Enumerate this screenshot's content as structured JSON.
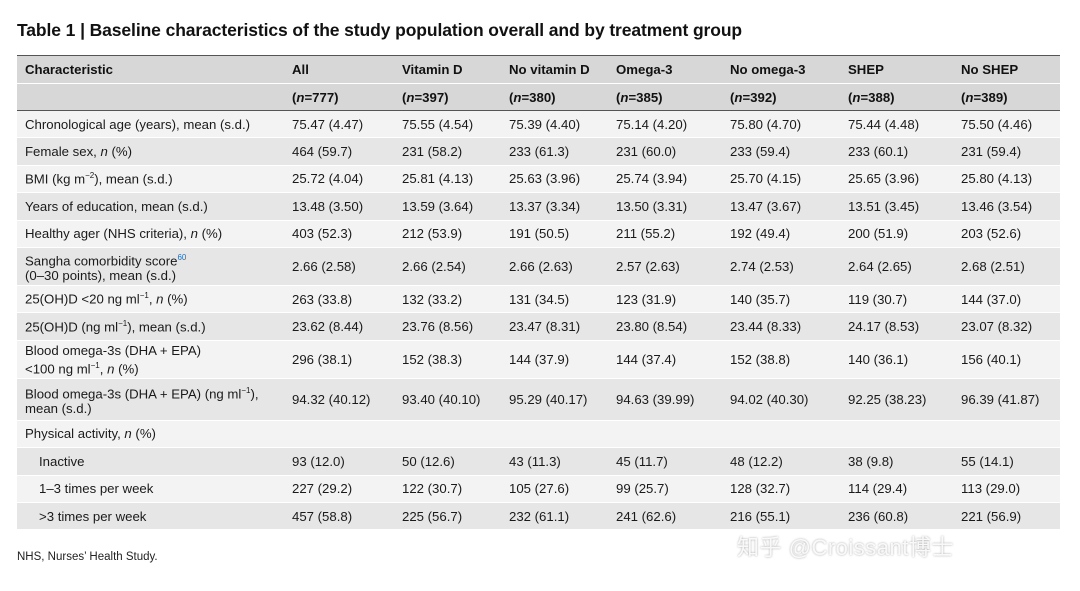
{
  "title": "Table 1 | Baseline characteristics of the study population overall and by treatment group",
  "header": {
    "characteristic": "Characteristic",
    "columns": [
      "All",
      "Vitamin D",
      "No vitamin D",
      "Omega-3",
      "No omega-3",
      "SHEP",
      "No SHEP"
    ],
    "n_label": "n",
    "n_values": [
      "=777)",
      "=397)",
      "=380)",
      "=385)",
      "=392)",
      "=388)",
      "=389)"
    ]
  },
  "rows": [
    {
      "label": "Chronological age (years), mean (s.d.)",
      "values": [
        "75.47 (4.47)",
        "75.55 (4.54)",
        "75.39 (4.40)",
        "75.14 (4.20)",
        "75.80 (4.70)",
        "75.44 (4.48)",
        "75.50 (4.46)"
      ]
    },
    {
      "label_pre": "Female sex, ",
      "label_n": "n",
      "label_post": " (%)",
      "values": [
        "464 (59.7)",
        "231 (58.2)",
        "233 (61.3)",
        "231 (60.0)",
        "233 (59.4)",
        "233 (60.1)",
        "231 (59.4)"
      ]
    },
    {
      "label_pre": "BMI (kg m",
      "label_sup": "−2",
      "label_post": "), mean (s.d.)",
      "values": [
        "25.72 (4.04)",
        "25.81 (4.13)",
        "25.63 (3.96)",
        "25.74 (3.94)",
        "25.70 (4.15)",
        "25.65 (3.96)",
        "25.80 (4.13)"
      ]
    },
    {
      "label": "Years of education, mean (s.d.)",
      "values": [
        "13.48 (3.50)",
        "13.59 (3.64)",
        "13.37 (3.34)",
        "13.50 (3.31)",
        "13.47 (3.67)",
        "13.51 (3.45)",
        "13.46 (3.54)"
      ]
    },
    {
      "label_pre": "Healthy ager (NHS criteria), ",
      "label_n": "n",
      "label_post": " (%)",
      "values": [
        "403 (52.3)",
        "212 (53.9)",
        "191 (50.5)",
        "211 (55.2)",
        "192 (49.4)",
        "200 (51.9)",
        "203 (52.6)"
      ]
    },
    {
      "label_line1": "Sangha comorbidity score",
      "label_ref": "60",
      "label_line2": "(0–30 points), mean (s.d.)",
      "values": [
        "2.66 (2.58)",
        "2.66 (2.54)",
        "2.66 (2.63)",
        "2.57 (2.63)",
        "2.74 (2.53)",
        "2.64 (2.65)",
        "2.68 (2.51)"
      ]
    },
    {
      "label_pre": "25(OH)D <20 ng ml",
      "label_sup": "−1",
      "label_mid": ", ",
      "label_n": "n",
      "label_post": " (%)",
      "values": [
        "263 (33.8)",
        "132 (33.2)",
        "131 (34.5)",
        "123 (31.9)",
        "140 (35.7)",
        "119 (30.7)",
        "144 (37.0)"
      ]
    },
    {
      "label_pre": "25(OH)D (ng ml",
      "label_sup": "−1",
      "label_post": "), mean (s.d.)",
      "values": [
        "23.62 (8.44)",
        "23.76 (8.56)",
        "23.47 (8.31)",
        "23.80 (8.54)",
        "23.44 (8.33)",
        "24.17 (8.53)",
        "23.07 (8.32)"
      ]
    },
    {
      "label_line1": "Blood omega-3s (DHA + EPA)",
      "label_line2_pre": "<100 ng ml",
      "label_sup": "−1",
      "label_line2_mid": ", ",
      "label_n": "n",
      "label_line2_post": " (%)",
      "values": [
        "296 (38.1)",
        "152 (38.3)",
        "144 (37.9)",
        "144 (37.4)",
        "152 (38.8)",
        "140 (36.1)",
        "156 (40.1)"
      ]
    },
    {
      "label_line1_pre": "Blood omega-3s (DHA + EPA) (ng ml",
      "label_sup": "−1",
      "label_line1_post": "),",
      "label_line2": "mean (s.d.)",
      "values": [
        "94.32 (40.12)",
        "93.40 (40.10)",
        "95.29 (40.17)",
        "94.63 (39.99)",
        "94.02 (40.30)",
        "92.25 (38.23)",
        "96.39 (41.87)"
      ]
    },
    {
      "label_pre": "Physical activity, ",
      "label_n": "n",
      "label_post": " (%)",
      "values": [
        "",
        "",
        "",
        "",
        "",
        "",
        ""
      ]
    },
    {
      "label": "Inactive",
      "values": [
        "93 (12.0)",
        "50 (12.6)",
        "43 (11.3)",
        "45 (11.7)",
        "48 (12.2)",
        "38 (9.8)",
        "55 (14.1)"
      ]
    },
    {
      "label": "1–3 times per week",
      "values": [
        "227 (29.2)",
        "122 (30.7)",
        "105 (27.6)",
        "99 (25.7)",
        "128 (32.7)",
        "114 (29.4)",
        "113 (29.0)"
      ]
    },
    {
      "label": ">3 times per week",
      "values": [
        "457 (58.8)",
        "225 (56.7)",
        "232 (61.1)",
        "241 (62.6)",
        "216 (55.1)",
        "236 (60.8)",
        "221 (56.9)"
      ]
    }
  ],
  "footnote": "NHS, Nurses’ Health Study.",
  "watermark": "知乎 @Croissant博士"
}
